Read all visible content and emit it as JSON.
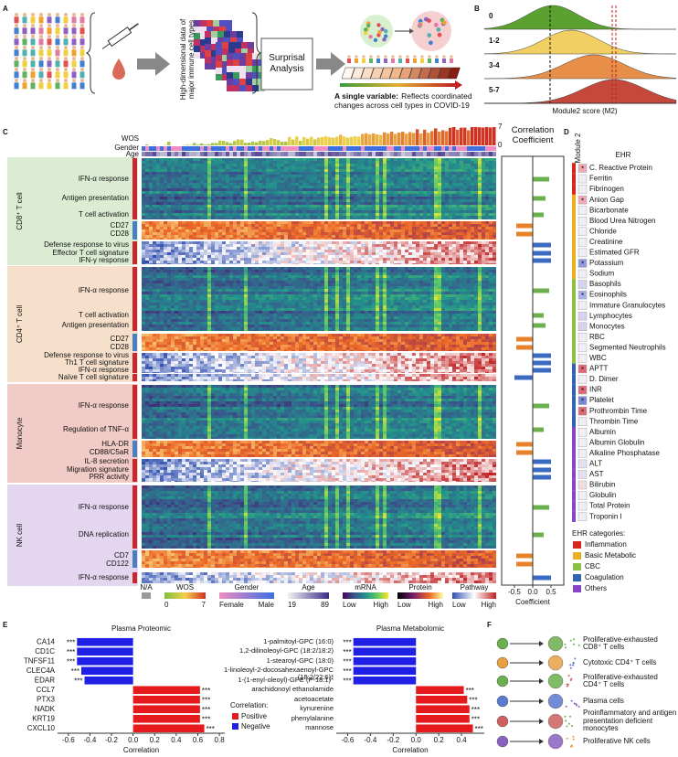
{
  "panels": {
    "a": "A",
    "b": "B",
    "c": "C",
    "d": "D",
    "e": "E",
    "f": "F"
  },
  "panel_a": {
    "data_label": "High-dimensional data of major immune cell types",
    "box": "Surprisal Analysis",
    "single_variable": "A single variable:",
    "reflects": "Reflects coordinated changes across cell types in COVID-19"
  },
  "panel_b": {
    "groups": [
      {
        "name": "0",
        "color": "#4e9a1e"
      },
      {
        "name": "1-2",
        "color": "#f0cc55"
      },
      {
        "name": "3-4",
        "color": "#e5853a"
      },
      {
        "name": "5-7",
        "color": "#bf3a2b"
      }
    ],
    "xlabel": "Module2 score (M2)"
  },
  "panel_c": {
    "groups": [
      {
        "name": "CD8⁺ T cell",
        "color": "#dcecd2"
      },
      {
        "name": "CD4⁺ T cell",
        "color": "#f6dfcb"
      },
      {
        "name": "Monocyte",
        "color": "#f1cbc6"
      },
      {
        "name": "NK cell",
        "color": "#e4d6f1"
      }
    ],
    "strips": [
      "WOS",
      "Gender",
      "Age"
    ],
    "wos_ylim": [
      0,
      7
    ],
    "wos_yticks": [
      0,
      7
    ],
    "legend": {
      "na": "N/A",
      "wos": {
        "title": "WOS",
        "low": 0,
        "high": 7
      },
      "gender": {
        "title": "Gender",
        "low": "Female",
        "high": "Male"
      },
      "age": {
        "title": "Age",
        "low": 19,
        "high": 89
      },
      "mrna": {
        "title": "mRNA",
        "low": "Low",
        "high": "High"
      },
      "protein": {
        "title": "Protein",
        "low": "Low",
        "high": "High"
      },
      "pathway": {
        "title": "Pathway",
        "low": "Low",
        "high": "High"
      }
    }
  },
  "panel_d": {
    "title": "EHR",
    "module": "Module 2",
    "legend_title": "EHR categories:",
    "categories": [
      {
        "name": "Inflammation",
        "color": "#d7261e"
      },
      {
        "name": "Basic Metabolic",
        "color": "#e8b020"
      },
      {
        "name": "CBC",
        "color": "#8cc040"
      },
      {
        "name": "Coagulation",
        "color": "#3262b2"
      },
      {
        "name": "Others",
        "color": "#8a44c8"
      }
    ],
    "items": [
      {
        "name": "C. Reactive Protein",
        "category": 0,
        "box": "#f2a7b5",
        "star": "*"
      },
      {
        "name": "Ferritin",
        "category": 0,
        "box": "#f1edf6"
      },
      {
        "name": "Fibrinogen",
        "category": 0,
        "box": "#f1edf6"
      },
      {
        "name": "Anion Gap",
        "category": 1,
        "box": "#f2a7b5",
        "star": "*"
      },
      {
        "name": "Bicarbonate",
        "category": 1,
        "box": "#f1edf6"
      },
      {
        "name": "Blood Urea Nitrogen",
        "category": 1,
        "box": "#f1edf6"
      },
      {
        "name": "Chloride",
        "category": 1,
        "box": "#f1edf6"
      },
      {
        "name": "Creatinine",
        "category": 1,
        "box": "#f1edf6"
      },
      {
        "name": "Estimated GFR",
        "category": 1,
        "box": "#f1edf6"
      },
      {
        "name": "Potassium",
        "category": 1,
        "box": "#8f9be0",
        "star": "*"
      },
      {
        "name": "Sodium",
        "category": 1,
        "box": "#f1edf6"
      },
      {
        "name": "Basophils",
        "category": 2,
        "box": "#d6d3ee"
      },
      {
        "name": "Eosinophils",
        "category": 2,
        "box": "#a9b1ea",
        "star": "*"
      },
      {
        "name": "Immature Granulocytes",
        "category": 2,
        "box": "#f1edf6"
      },
      {
        "name": "Lymphocytes",
        "category": 2,
        "box": "#d6d3ee"
      },
      {
        "name": "Monocytes",
        "category": 2,
        "box": "#d6d3ee"
      },
      {
        "name": "RBC",
        "category": 2,
        "box": "#f1edf6"
      },
      {
        "name": "Segmented Neutrophils",
        "category": 2,
        "box": "#f1edf6"
      },
      {
        "name": "WBC",
        "category": 2,
        "box": "#f1edf6"
      },
      {
        "name": "APTT",
        "category": 3,
        "box": "#e06878",
        "star": "*"
      },
      {
        "name": "D. Dimer",
        "category": 3,
        "box": "#f1edf6"
      },
      {
        "name": "INR",
        "category": 3,
        "box": "#e06878",
        "star": "*"
      },
      {
        "name": "Platelet",
        "category": 3,
        "box": "#7a86dc",
        "star": "*"
      },
      {
        "name": "Prothrombin Time",
        "category": 3,
        "box": "#e06878",
        "star": "*"
      },
      {
        "name": "Thrombin Time",
        "category": 3,
        "box": "#f1edf6"
      },
      {
        "name": "Albumin",
        "category": 4,
        "box": "#f1edf6"
      },
      {
        "name": "Albumin Globulin",
        "category": 4,
        "box": "#f1edf6"
      },
      {
        "name": "Alkaline Phosphatase",
        "category": 4,
        "box": "#f1edf6"
      },
      {
        "name": "ALT",
        "category": 4,
        "box": "#e4e0f2"
      },
      {
        "name": "AST",
        "category": 4,
        "box": "#e4e0f2"
      },
      {
        "name": "Bilirubin",
        "category": 4,
        "box": "#f0dde4"
      },
      {
        "name": "Globulin",
        "category": 4,
        "box": "#f1edf6"
      },
      {
        "name": "Total Protein",
        "category": 4,
        "box": "#f1edf6"
      },
      {
        "name": "Troponin I",
        "category": 4,
        "box": "#f1edf6"
      }
    ]
  },
  "chart_data": [
    {
      "type": "hbar",
      "title": "Plasma Proteomic",
      "categories": [
        "CA14",
        "CD1C",
        "TNFSF11",
        "CLEC4A",
        "EDAR",
        "CCL7",
        "PTX3",
        "NADK",
        "KRT19",
        "CXCL10"
      ],
      "values": [
        -0.52,
        -0.52,
        -0.52,
        -0.48,
        -0.45,
        0.62,
        0.62,
        0.62,
        0.62,
        0.66
      ],
      "annotations": [
        "***",
        "***",
        "***",
        "***",
        "***",
        "***",
        "***",
        "***",
        "***",
        "***"
      ],
      "xlabel": "Correlation",
      "xlim": [
        -0.7,
        0.85
      ],
      "xticks": [
        -0.6,
        -0.4,
        -0.2,
        {
          "value": 0,
          "label": "0.0"
        },
        0.2,
        0.4,
        0.6,
        0.8
      ],
      "legend_title": "Correlation:",
      "legend": [
        {
          "name": "Positive",
          "color": "#e41a1c"
        },
        {
          "name": "Negative",
          "color": "#1f1fe6"
        }
      ]
    },
    {
      "type": "hbar",
      "title": "Plasma Metabolomic",
      "categories": [
        "1-palmitoyl-GPC (16:0)",
        "1,2-dilinoleoyl-GPC (18:2/18:2)",
        "1-stearoyl-GPC (18:0)",
        "1-linoleoyl-2-docosahexaenoyl-GPC (18:2/22:6)*",
        "1-(1-enyl-oleoyl)-GPE (P-18:1)*",
        "arachidonoyl ethanolamide",
        "acetoacetate",
        "kynurenine",
        "phenylalanine",
        "mannose"
      ],
      "values": [
        -0.55,
        -0.55,
        -0.55,
        -0.55,
        -0.55,
        0.42,
        0.45,
        0.47,
        0.47,
        0.5
      ],
      "annotations": [
        "***",
        "***",
        "***",
        "***",
        "***",
        "***",
        "***",
        "***",
        "***",
        "***"
      ],
      "xlabel": "Correlation",
      "xlim": [
        -0.7,
        0.6
      ],
      "xticks": [
        -0.6,
        -0.4,
        -0.2,
        {
          "value": 0,
          "label": "0.0"
        },
        0.2,
        0.4
      ],
      "colors": [
        "#e41a1c",
        "#1f1fe6"
      ]
    },
    {
      "type": "hbar",
      "title": "Correlation Coefficient",
      "categories": [
        "IFN-α response",
        "Antigen presentation",
        "T cell activation",
        "CD27",
        "CD28",
        "Defense response to virus",
        "Effector T cell signature",
        "IFN-γ response",
        "IFN-α response",
        "T cell activation",
        "Antigen presentation",
        "CD27",
        "CD28",
        "Defense response to virus",
        "Th1 T cell signature",
        "IFN-α response",
        "Naïve T cell signature",
        "IFN-α response",
        "Regulation of TNF-α",
        "HLA-DR",
        "CD88/C5aR",
        "IL-8 secretion",
        "Migration signature",
        "PRR activity",
        "IFN-α response",
        "DNA replication",
        "CD7",
        "CD122",
        "IFN-α response"
      ],
      "values": [
        0.45,
        0.35,
        0.3,
        -0.45,
        -0.45,
        0.5,
        0.5,
        0.5,
        0.45,
        0.3,
        0.35,
        -0.45,
        -0.45,
        0.5,
        0.5,
        0.5,
        -0.5,
        0.45,
        0.3,
        -0.45,
        -0.45,
        0.5,
        0.5,
        0.5,
        0.45,
        0.3,
        -0.45,
        -0.45,
        0.5
      ],
      "colors": [
        "#6ab04c",
        "#6ab04c",
        "#6ab04c",
        "#e8822a",
        "#e8822a",
        "#3a6bc0",
        "#3a6bc0",
        "#3a6bc0",
        "#6ab04c",
        "#6ab04c",
        "#6ab04c",
        "#e8822a",
        "#e8822a",
        "#3a6bc0",
        "#3a6bc0",
        "#3a6bc0",
        "#3a6bc0",
        "#6ab04c",
        "#6ab04c",
        "#e8822a",
        "#e8822a",
        "#3a6bc0",
        "#3a6bc0",
        "#3a6bc0",
        "#6ab04c",
        "#6ab04c",
        "#e8822a",
        "#e8822a",
        "#3a6bc0"
      ],
      "xlabel": "Coefficient",
      "xlim": [
        -0.75,
        0.75
      ],
      "xticks": [
        -0.5,
        {
          "value": 0,
          "label": "0.0"
        },
        0.5
      ]
    }
  ],
  "panel_f": {
    "cells": [
      "Proliferative-exhausted CD8⁺ T cells",
      "Cytotoxic CD4⁺ T cells",
      "Proliferative-exhausted CD4⁺ T cells",
      "Plasma cells",
      "Proinflammatory and antigen presentation deficient monocytes",
      "Proliferative NK cells"
    ]
  }
}
